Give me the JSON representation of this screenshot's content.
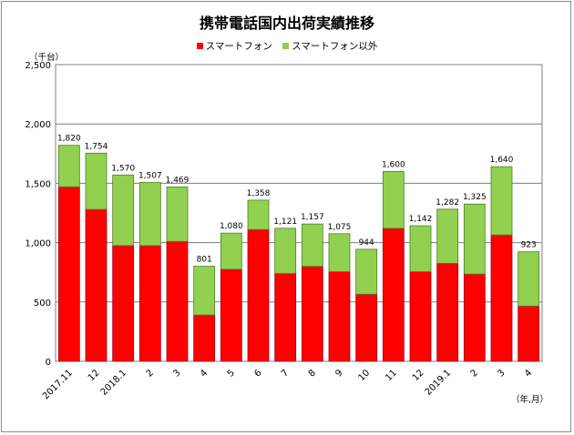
{
  "chart_data": {
    "type": "bar",
    "stacked": true,
    "title": "携帯電話国内出荷実績推移",
    "y_unit": "（千台）",
    "x_unit": "（年,月）",
    "ylim": [
      0,
      2500
    ],
    "yticks": [
      "0",
      "500",
      "1,000",
      "1,500",
      "2,000",
      "2,500"
    ],
    "grid": true,
    "legend_position": "top",
    "categories": [
      "2017.11",
      "12",
      "2018.1",
      "2",
      "3",
      "4",
      "5",
      "6",
      "7",
      "8",
      "9",
      "10",
      "11",
      "12",
      "2019.1",
      "2",
      "3",
      "4"
    ],
    "totals": [
      "1,820",
      "1,754",
      "1,570",
      "1,507",
      "1,469",
      "801",
      "1,080",
      "1,358",
      "1,121",
      "1,157",
      "1,075",
      "944",
      "1,600",
      "1,142",
      "1,282",
      "1,325",
      "1,640",
      "923"
    ],
    "series": [
      {
        "name": "スマートフォン",
        "color": "#ff0000",
        "values": [
          1470,
          1280,
          975,
          975,
          1010,
          390,
          775,
          1110,
          740,
          800,
          755,
          565,
          1120,
          755,
          825,
          735,
          1065,
          465
        ]
      },
      {
        "name": "スマートフォン以外",
        "color": "#92d050",
        "values": [
          350,
          474,
          595,
          532,
          459,
          411,
          305,
          248,
          381,
          357,
          320,
          379,
          480,
          387,
          457,
          590,
          575,
          458
        ]
      }
    ]
  }
}
